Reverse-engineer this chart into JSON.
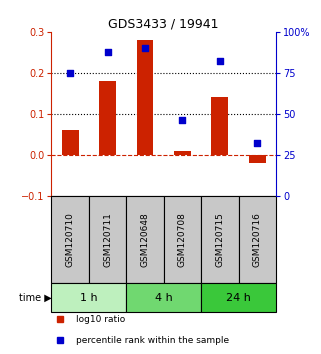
{
  "title": "GDS3433 / 19941",
  "samples": [
    "GSM120710",
    "GSM120711",
    "GSM120648",
    "GSM120708",
    "GSM120715",
    "GSM120716"
  ],
  "log10_ratio": [
    0.06,
    0.18,
    0.28,
    0.01,
    0.14,
    -0.02
  ],
  "percentile_rank": [
    75,
    88,
    90,
    46,
    82,
    32
  ],
  "left_ylim": [
    -0.1,
    0.3
  ],
  "right_ylim": [
    0,
    100
  ],
  "left_yticks": [
    -0.1,
    0.0,
    0.1,
    0.2,
    0.3
  ],
  "right_yticks": [
    0,
    25,
    50,
    75,
    100
  ],
  "right_yticklabels": [
    "0",
    "25",
    "50",
    "75",
    "100%"
  ],
  "dotted_lines": [
    0.1,
    0.2
  ],
  "time_groups": [
    {
      "label": "1 h",
      "start": 0,
      "end": 2,
      "color": "#bef0be"
    },
    {
      "label": "4 h",
      "start": 2,
      "end": 4,
      "color": "#70d870"
    },
    {
      "label": "24 h",
      "start": 4,
      "end": 6,
      "color": "#3ac83a"
    }
  ],
  "bar_color": "#cc2200",
  "square_color": "#0000cc",
  "bar_width": 0.45,
  "legend_items": [
    {
      "label": "log10 ratio",
      "color": "#cc2200"
    },
    {
      "label": "percentile rank within the sample",
      "color": "#0000cc"
    }
  ],
  "sample_box_color": "#c8c8c8",
  "zero_line_color": "#cc2200",
  "dotted_line_color": "#000000",
  "background_color": "#ffffff",
  "title_fontsize": 9,
  "tick_fontsize": 7,
  "sample_fontsize": 6.5,
  "time_fontsize": 8,
  "legend_fontsize": 6.5
}
